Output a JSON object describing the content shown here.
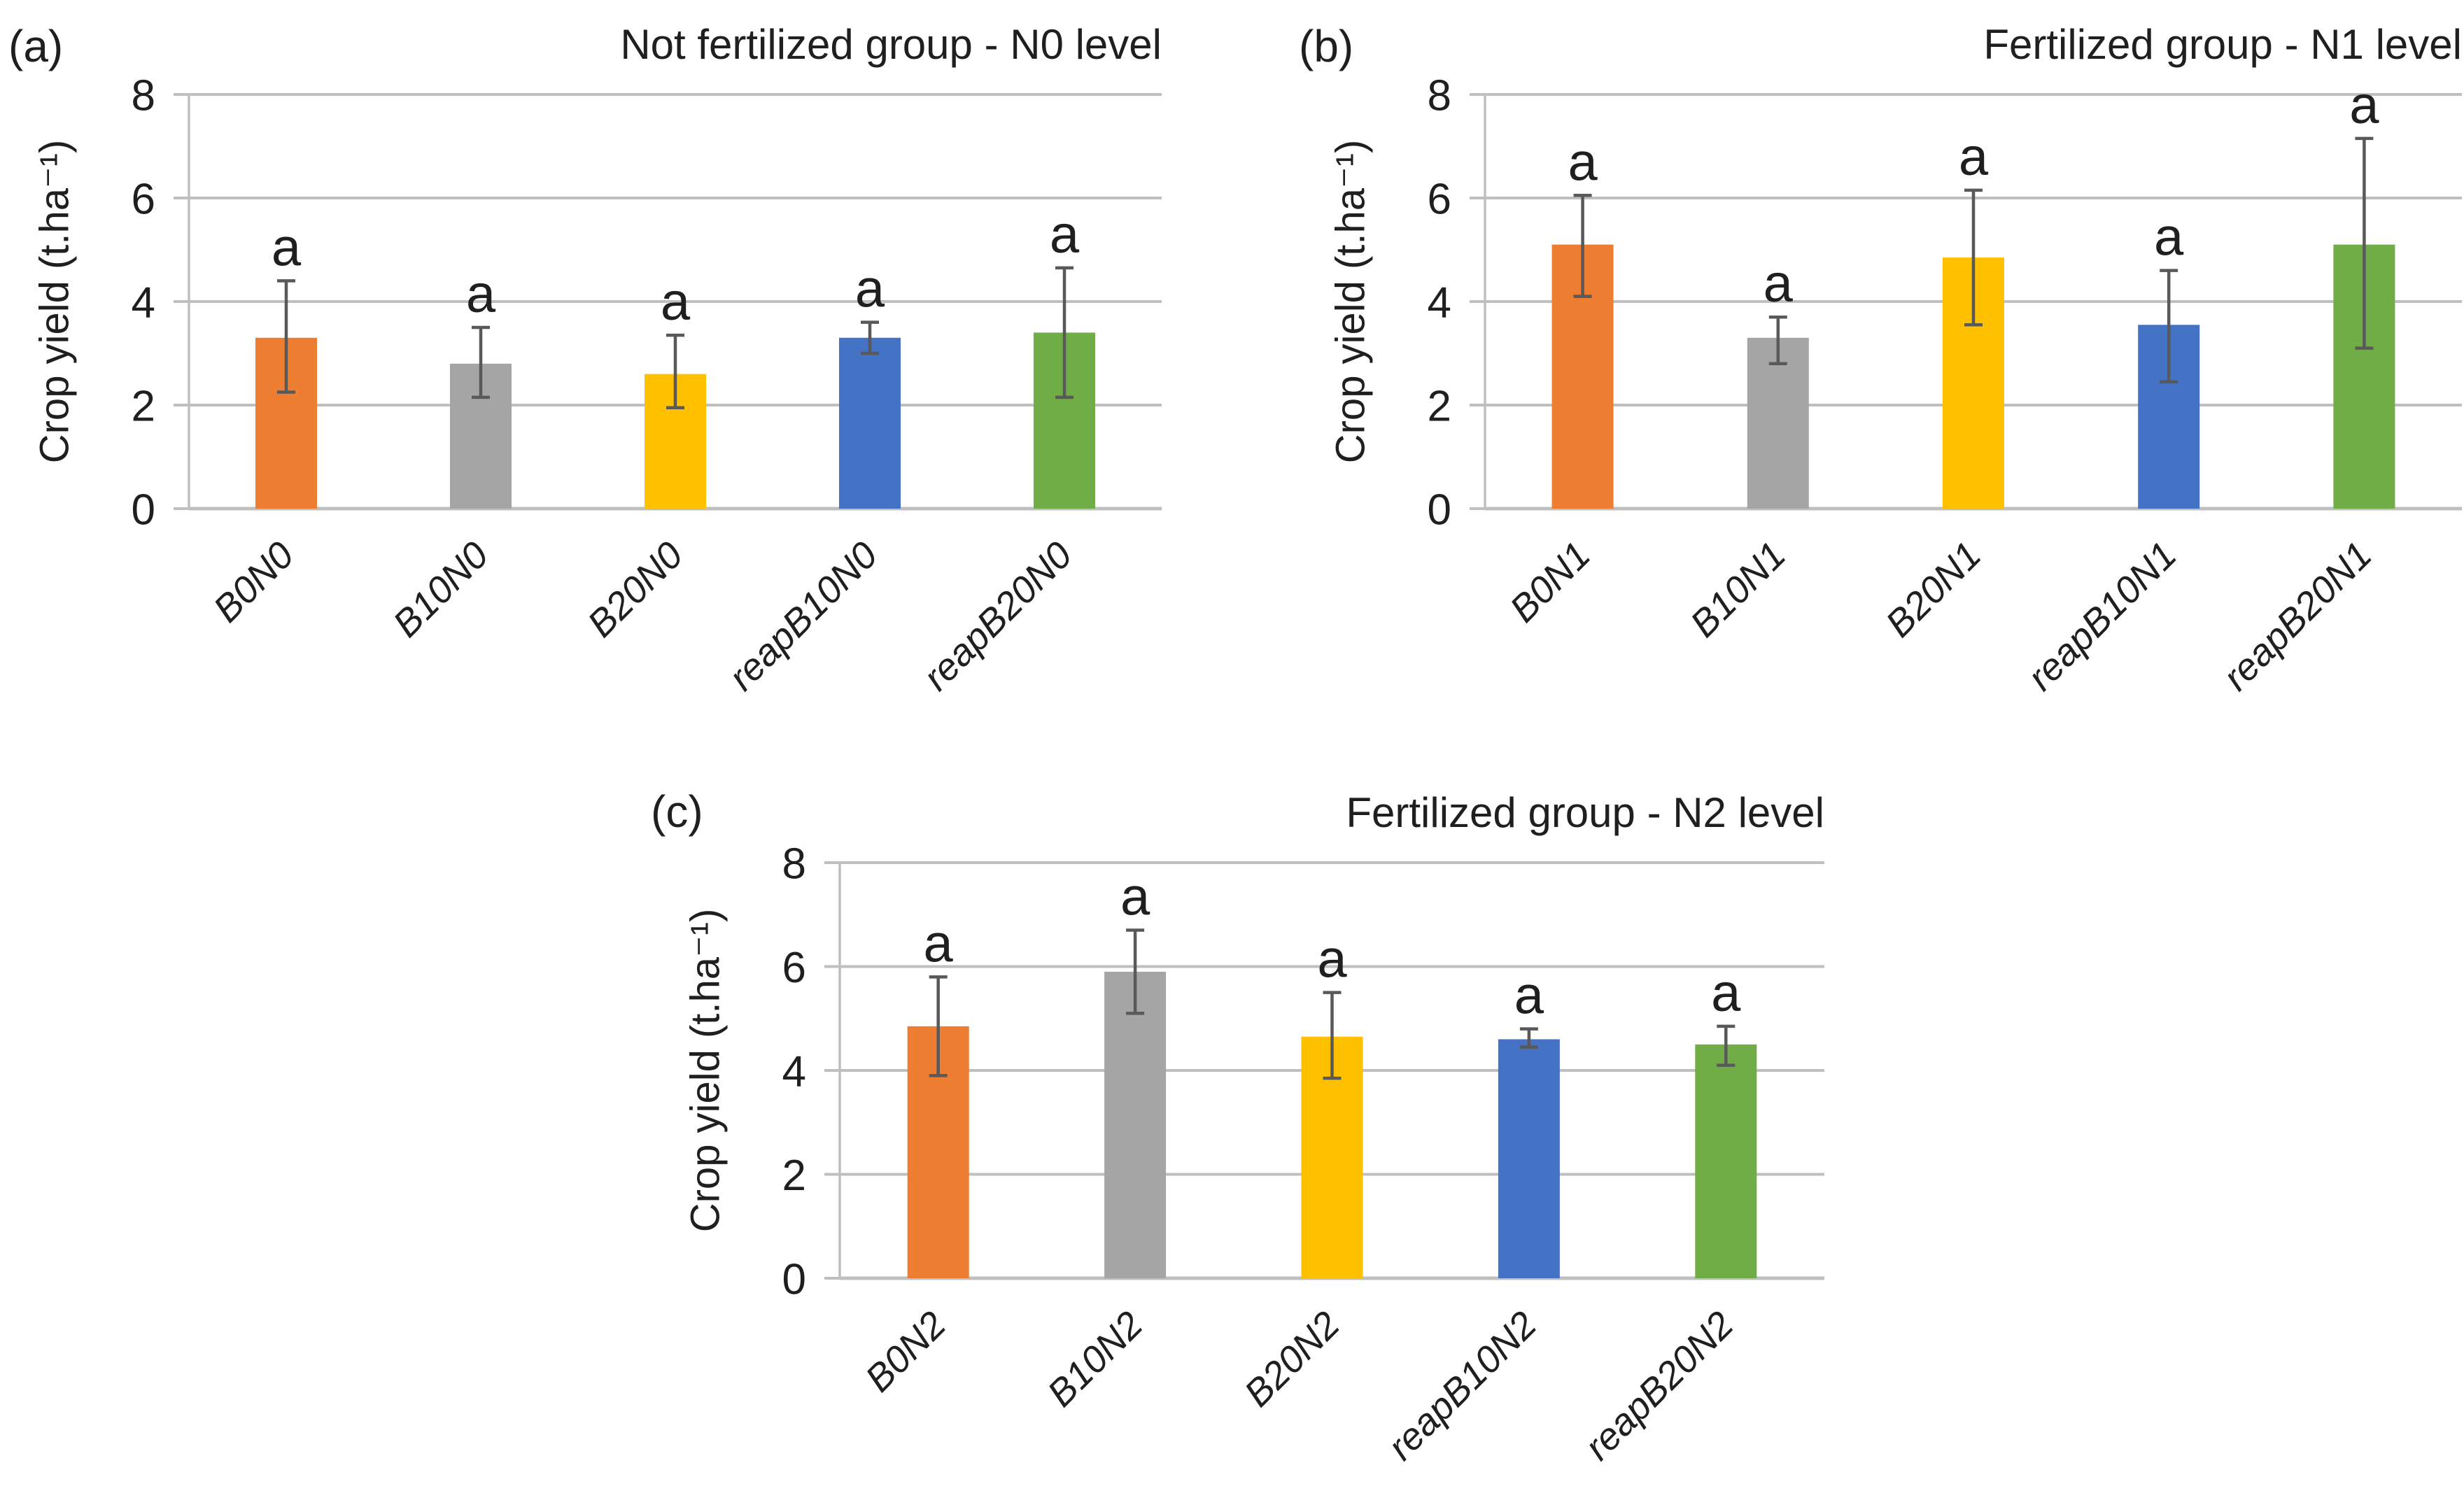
{
  "figure": {
    "background": "#ffffff",
    "text_color": "#1f1f1f",
    "grid_color": "#bfbfbf",
    "axis_color": "#bfbfbf",
    "error_bar_color": "#595959",
    "bar_colors": [
      "#ED7D31",
      "#A5A5A5",
      "#FFC000",
      "#4472C4",
      "#70AD47"
    ]
  },
  "chart_data": [
    {
      "type": "bar",
      "panel_label": "(a)",
      "title": "Not fertilized group - N0 level",
      "xlabel": "",
      "ylabel": "Crop yield (t.ha⁻¹)",
      "ylim": [
        0,
        8
      ],
      "yticks": [
        0,
        2,
        4,
        6,
        8
      ],
      "grid": true,
      "legend_position": "none",
      "categories": [
        "B0N0",
        "B10N0",
        "B20N0",
        "reapB10N0",
        "reapB20N0"
      ],
      "values": [
        3.3,
        2.8,
        2.6,
        3.3,
        3.4
      ],
      "error_top": [
        4.4,
        3.5,
        3.35,
        3.6,
        4.65
      ],
      "error_bottom": [
        2.25,
        2.15,
        1.95,
        3.0,
        2.15
      ],
      "point_labels": [
        "a",
        "a",
        "a",
        "a",
        "a"
      ],
      "bar_colors": [
        "#ED7D31",
        "#A5A5A5",
        "#FFC000",
        "#4472C4",
        "#70AD47"
      ]
    },
    {
      "type": "bar",
      "panel_label": "(b)",
      "title": "Fertilized group - N1 level",
      "xlabel": "",
      "ylabel": "Crop yield (t.ha⁻¹)",
      "ylim": [
        0,
        8
      ],
      "yticks": [
        0,
        2,
        4,
        6,
        8
      ],
      "grid": true,
      "legend_position": "none",
      "categories": [
        "B0N1",
        "B10N1",
        "B20N1",
        "reapB10N1",
        "reapB20N1"
      ],
      "values": [
        5.1,
        3.3,
        4.85,
        3.55,
        5.1
      ],
      "error_top": [
        6.05,
        3.7,
        6.15,
        4.6,
        7.15
      ],
      "error_bottom": [
        4.1,
        2.8,
        3.55,
        2.45,
        3.1
      ],
      "point_labels": [
        "a",
        "a",
        "a",
        "a",
        "a"
      ],
      "bar_colors": [
        "#ED7D31",
        "#A5A5A5",
        "#FFC000",
        "#4472C4",
        "#70AD47"
      ]
    },
    {
      "type": "bar",
      "panel_label": "(c)",
      "title": "Fertilized group - N2 level",
      "xlabel": "",
      "ylabel": "Crop yield (t.ha⁻¹)",
      "ylim": [
        0,
        8
      ],
      "yticks": [
        0,
        2,
        4,
        6,
        8
      ],
      "grid": true,
      "legend_position": "none",
      "categories": [
        "B0N2",
        "B10N2",
        "B20N2",
        "reapB10N2",
        "reapB20N2"
      ],
      "values": [
        4.85,
        5.9,
        4.65,
        4.6,
        4.5
      ],
      "error_top": [
        5.8,
        6.7,
        5.5,
        4.8,
        4.85
      ],
      "error_bottom": [
        3.9,
        5.1,
        3.85,
        4.45,
        4.1
      ],
      "point_labels": [
        "a",
        "a",
        "a",
        "a",
        "a"
      ],
      "bar_colors": [
        "#ED7D31",
        "#A5A5A5",
        "#FFC000",
        "#4472C4",
        "#70AD47"
      ]
    }
  ]
}
